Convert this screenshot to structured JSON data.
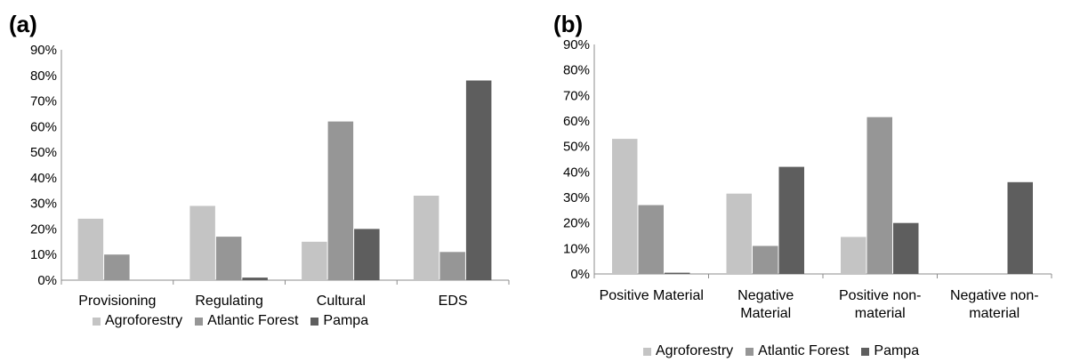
{
  "panels": {
    "a": {
      "label": "(a)"
    },
    "b": {
      "label": "(b)"
    }
  },
  "legend": [
    "Agroforestry",
    "Atlantic Forest",
    "Pampa"
  ],
  "colors": {
    "Agroforestry": "#c4c4c4",
    "Atlantic Forest": "#969696",
    "Pampa": "#5e5e5e",
    "axis": "#8c8c8c"
  },
  "chart_data": [
    {
      "type": "bar",
      "panel": "(a)",
      "categories": [
        "Provisioning",
        "Regulating",
        "Cultural",
        "EDS"
      ],
      "series": [
        {
          "name": "Agroforestry",
          "values": [
            24,
            29,
            15,
            33
          ]
        },
        {
          "name": "Atlantic Forest",
          "values": [
            10,
            17,
            62,
            11
          ]
        },
        {
          "name": "Pampa",
          "values": [
            0,
            1,
            20,
            78
          ]
        }
      ],
      "ylim": [
        0,
        90
      ],
      "yticks": [
        "0%",
        "10%",
        "20%",
        "30%",
        "40%",
        "50%",
        "60%",
        "70%",
        "80%",
        "90%"
      ],
      "grid": false,
      "legend_position": "bottom"
    },
    {
      "type": "bar",
      "panel": "(b)",
      "categories": [
        [
          "Positive Material"
        ],
        [
          "Negative",
          "Material"
        ],
        [
          "Positive non-",
          "material"
        ],
        [
          "Negative non-",
          "material"
        ]
      ],
      "series": [
        {
          "name": "Agroforestry",
          "values": [
            53,
            31.5,
            14.5,
            0
          ]
        },
        {
          "name": "Atlantic Forest",
          "values": [
            27,
            11,
            61.5,
            0
          ]
        },
        {
          "name": "Pampa",
          "values": [
            0.5,
            42,
            20,
            36
          ]
        }
      ],
      "ylim": [
        0,
        90
      ],
      "yticks": [
        "0%",
        "10%",
        "20%",
        "30%",
        "40%",
        "50%",
        "60%",
        "70%",
        "80%",
        "90%"
      ],
      "grid": false,
      "legend_position": "bottom"
    }
  ]
}
